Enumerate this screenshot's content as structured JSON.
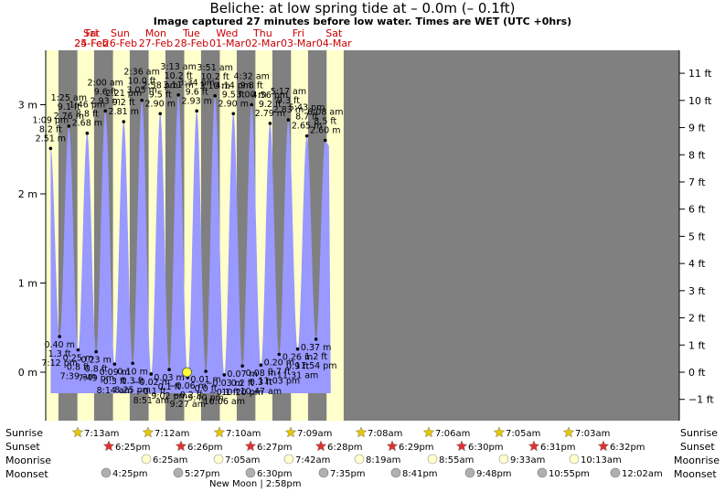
{
  "title": "Beliche: at low  spring tide at – 0.0m (– 0.1ft)",
  "subtitle": "Image captured 27 minutes before low water. Times are WET (UTC +0hrs)",
  "colors": {
    "day": "#ffffcc",
    "night": "#808080",
    "tide": "#9999ff",
    "day_label": "#cc0000",
    "sun_star": "#e6c800",
    "sunset_star": "#e03030",
    "moon_rise": "#ffffcc",
    "moon_set": "#b0b0b0",
    "now_marker": "#ffff33"
  },
  "rows": {
    "sunrise": "Sunrise",
    "sunset": "Sunset",
    "moonrise": "Moonrise",
    "moonset": "Moonset"
  },
  "new_moon": "New Moon | 2:58pm",
  "chart_data": {
    "type": "area",
    "title": "Beliche: at low  spring tide at – 0.0m (– 0.1ft)",
    "ylim_m": [
      -0.45,
      3.6
    ],
    "left_ticks": [
      "0 m",
      "1 m",
      "2 m",
      "3 m"
    ],
    "left_tick_values": [
      0,
      1,
      2,
      3
    ],
    "right_ticks": [
      "−1 ft",
      "0 ft",
      "1 ft",
      "2 ft",
      "3 ft",
      "4 ft",
      "5 ft",
      "6 ft",
      "7 ft",
      "8 ft",
      "9 ft",
      "10 ft",
      "11 ft"
    ],
    "right_tick_values": [
      -1,
      0,
      1,
      2,
      3,
      4,
      5,
      6,
      7,
      8,
      9,
      10,
      11
    ],
    "days": [
      {
        "dow": "Fri",
        "date": "24-Feb"
      },
      {
        "dow": "Sat",
        "date": "25-Feb"
      },
      {
        "dow": "Sun",
        "date": "26-Feb"
      },
      {
        "dow": "Mon",
        "date": "27-Feb"
      },
      {
        "dow": "Tue",
        "date": "28-Feb"
      },
      {
        "dow": "Wed",
        "date": "01-Mar"
      },
      {
        "dow": "Thu",
        "date": "02-Mar"
      },
      {
        "dow": "Fri",
        "date": "03-Mar"
      },
      {
        "dow": "Sat",
        "date": "04-Mar"
      }
    ],
    "daylight": [
      {
        "rise": 7.22,
        "set": 18.42
      },
      {
        "rise": 7.2,
        "set": 18.43
      },
      {
        "rise": 7.17,
        "set": 18.45
      },
      {
        "rise": 7.15,
        "set": 18.47
      },
      {
        "rise": 7.13,
        "set": 18.48
      },
      {
        "rise": 7.1,
        "set": 18.5
      },
      {
        "rise": 7.08,
        "set": 18.52
      },
      {
        "rise": 7.05,
        "set": 18.53
      },
      {
        "rise": 7.03,
        "set": 18.53
      }
    ],
    "tides": [
      {
        "day": 0,
        "h": 13.15,
        "m": 2.51,
        "time": "1:09 pm",
        "ft": "8.2 ft",
        "mt": "2.51 m",
        "kind": "high"
      },
      {
        "day": 0,
        "h": 19.2,
        "m": 0.4,
        "time": "7:12 pm",
        "ft": "1.3 ft",
        "mt": "0.40 m",
        "kind": "low"
      },
      {
        "day": 1,
        "h": 1.42,
        "m": 2.76,
        "time": "1:25 am",
        "ft": "9.1 ft",
        "mt": "2.76 m",
        "kind": "high"
      },
      {
        "day": 1,
        "h": 7.65,
        "m": 0.25,
        "time": "7:39 am",
        "ft": "0.8 ft",
        "mt": "0.25 m",
        "kind": "low"
      },
      {
        "day": 1,
        "h": 13.77,
        "m": 2.68,
        "time": "1:46 pm",
        "ft": "8.8 ft",
        "mt": "2.68 m",
        "kind": "high"
      },
      {
        "day": 1,
        "h": 19.82,
        "m": 0.23,
        "time": "7:49 pm",
        "ft": "0.8 ft",
        "mt": "0.23 m",
        "kind": "low"
      },
      {
        "day": 2,
        "h": 2.0,
        "m": 2.93,
        "time": "2:00 am",
        "ft": "9.6 ft",
        "mt": "2.93 m",
        "kind": "high"
      },
      {
        "day": 2,
        "h": 8.23,
        "m": 0.09,
        "time": "8:14 am",
        "ft": "0.3 ft",
        "mt": "0.09 m",
        "kind": "low"
      },
      {
        "day": 2,
        "h": 14.35,
        "m": 2.81,
        "time": "2:21 pm",
        "ft": "9.2 ft",
        "mt": "2.81 m",
        "kind": "high"
      },
      {
        "day": 2,
        "h": 20.42,
        "m": 0.1,
        "time": "8:25 pm",
        "ft": "0.3 ft",
        "mt": "0.10 m",
        "kind": "low"
      },
      {
        "day": 3,
        "h": 2.6,
        "m": 3.05,
        "time": "2:36 am",
        "ft": "10.0 ft",
        "mt": "3.05 m",
        "kind": "high"
      },
      {
        "day": 3,
        "h": 8.85,
        "m": -0.02,
        "time": "8:51 am",
        "ft": "−0.1 ft",
        "mt": "−0.02 m",
        "kind": "low"
      },
      {
        "day": 3,
        "h": 14.97,
        "m": 2.9,
        "time": "2:58 pm",
        "ft": "9.5 ft",
        "mt": "2.90 m",
        "kind": "high"
      },
      {
        "day": 3,
        "h": 21.03,
        "m": 0.03,
        "time": "9:02 pm",
        "ft": "0.1 ft",
        "mt": "0.03 m",
        "kind": "low"
      },
      {
        "day": 4,
        "h": 3.22,
        "m": 3.11,
        "time": "3:13 am",
        "ft": "10.2 ft",
        "mt": "3.11 m",
        "kind": "high"
      },
      {
        "day": 4,
        "h": 9.45,
        "m": -0.06,
        "time": "9:27 am",
        "ft": "−0.2 ft",
        "mt": "−0.06 m",
        "kind": "low"
      },
      {
        "day": 4,
        "h": 15.57,
        "m": 2.93,
        "time": "3:34 pm",
        "ft": "9.6 ft",
        "mt": "2.93 m",
        "kind": "high"
      },
      {
        "day": 4,
        "h": 21.67,
        "m": 0.01,
        "time": "9:40 pm",
        "ft": "0.0 ft",
        "mt": "0.01 m",
        "kind": "low"
      },
      {
        "day": 5,
        "h": 3.85,
        "m": 3.1,
        "time": "3:51 am",
        "ft": "10.2 ft",
        "mt": "3.10 m",
        "kind": "high"
      },
      {
        "day": 5,
        "h": 10.1,
        "m": -0.03,
        "time": "10:06 am",
        "ft": "−0.1 ft",
        "mt": "−0.03 m",
        "kind": "low"
      },
      {
        "day": 5,
        "h": 16.23,
        "m": 2.9,
        "time": "4:14 pm",
        "ft": "9.5 ft",
        "mt": "2.90 m",
        "kind": "high"
      },
      {
        "day": 5,
        "h": 22.33,
        "m": 0.07,
        "time": "10:20 pm",
        "ft": "0.2 ft",
        "mt": "0.07 m",
        "kind": "low"
      },
      {
        "day": 6,
        "h": 4.53,
        "m": 3.0,
        "time": "4:32 am",
        "ft": "9.8 ft",
        "mt": "3.00 m",
        "kind": "high"
      },
      {
        "day": 6,
        "h": 10.78,
        "m": 0.08,
        "time": "10:47 am",
        "ft": "0.3 ft",
        "mt": "0.08 m",
        "kind": "low"
      },
      {
        "day": 6,
        "h": 16.93,
        "m": 2.79,
        "time": "4:56 pm",
        "ft": "9.2 ft",
        "mt": "2.79 m",
        "kind": "high"
      },
      {
        "day": 6,
        "h": 23.05,
        "m": 0.2,
        "time": "11:03 pm",
        "ft": "0.7 ft",
        "mt": "0.20 m",
        "kind": "low"
      },
      {
        "day": 7,
        "h": 5.28,
        "m": 2.83,
        "time": "5:17 am",
        "ft": "9.3 ft",
        "mt": "2.83 m",
        "kind": "high"
      },
      {
        "day": 7,
        "h": 11.52,
        "m": 0.26,
        "time": "11:31 am",
        "ft": "0.9 ft",
        "mt": "0.26 m",
        "kind": "low"
      },
      {
        "day": 7,
        "h": 17.72,
        "m": 2.65,
        "time": "5:43 pm",
        "ft": "8.7 ft",
        "mt": "2.65 m",
        "kind": "high"
      },
      {
        "day": 7,
        "h": 23.9,
        "m": 0.37,
        "time": "11:54 pm",
        "ft": "1.2 ft",
        "mt": "0.37 m",
        "kind": "low"
      },
      {
        "day": 8,
        "h": 6.13,
        "m": 2.6,
        "time": "6:08 am",
        "ft": "8.5 ft",
        "mt": "2.60 m",
        "kind": "high"
      }
    ],
    "now": {
      "day": 4,
      "h": 9.0,
      "m": 0.0
    },
    "sunrise": [
      "7:13am",
      "7:12am",
      "7:10am",
      "7:09am",
      "7:08am",
      "7:06am",
      "7:05am",
      "7:03am"
    ],
    "sunset": [
      "6:25pm",
      "6:26pm",
      "6:27pm",
      "6:28pm",
      "6:29pm",
      "6:30pm",
      "6:31pm",
      "6:32pm"
    ],
    "moonrise": [
      "6:25am",
      "7:05am",
      "7:42am",
      "8:19am",
      "8:55am",
      "9:33am",
      "10:13am"
    ],
    "moonset": [
      "4:25pm",
      "5:27pm",
      "6:30pm",
      "7:35pm",
      "8:41pm",
      "9:48pm",
      "10:55pm",
      "12:02am"
    ]
  }
}
